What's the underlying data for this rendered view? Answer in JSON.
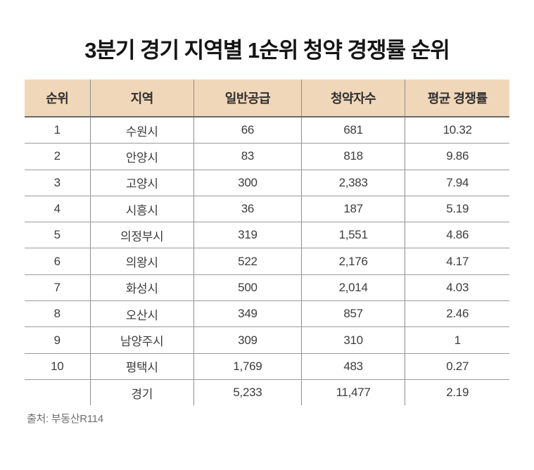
{
  "title": "3분기 경기 지역별 1순위 청약 경쟁률 순위",
  "source": "출처: 부동산R114",
  "colors": {
    "header_background": "#f1d7ba",
    "header_bottom_border": "#6b6b6b",
    "row_separator": "#9b9b9b",
    "column_separator": "#8d8d8d",
    "title_text": "#151515",
    "body_text": "#3c3c3c",
    "source_text": "#6f6f6f"
  },
  "chart_data": {
    "type": "table",
    "title": "3분기 경기 지역별 1순위 청약 경쟁률 순위",
    "columns": [
      "순위",
      "지역",
      "일반공급",
      "청약자수",
      "평균 경쟁률"
    ],
    "rows": [
      [
        "1",
        "수원시",
        "66",
        "681",
        "10.32"
      ],
      [
        "2",
        "안양시",
        "83",
        "818",
        "9.86"
      ],
      [
        "3",
        "고양시",
        "300",
        "2,383",
        "7.94"
      ],
      [
        "4",
        "시흥시",
        "36",
        "187",
        "5.19"
      ],
      [
        "5",
        "의정부시",
        "319",
        "1,551",
        "4.86"
      ],
      [
        "6",
        "의왕시",
        "522",
        "2,176",
        "4.17"
      ],
      [
        "7",
        "화성시",
        "500",
        "2,014",
        "4.03"
      ],
      [
        "8",
        "오산시",
        "349",
        "857",
        "2.46"
      ],
      [
        "9",
        "남양주시",
        "309",
        "310",
        "1"
      ],
      [
        "10",
        "평택시",
        "1,769",
        "483",
        "0.27"
      ],
      [
        "",
        "경기",
        "5,233",
        "11,477",
        "2.19"
      ]
    ],
    "layout": {
      "grid": "internal vertical and horizontal separators only",
      "outer_borders": "none",
      "header_style": "peach filled band with dark bottom rule"
    }
  }
}
